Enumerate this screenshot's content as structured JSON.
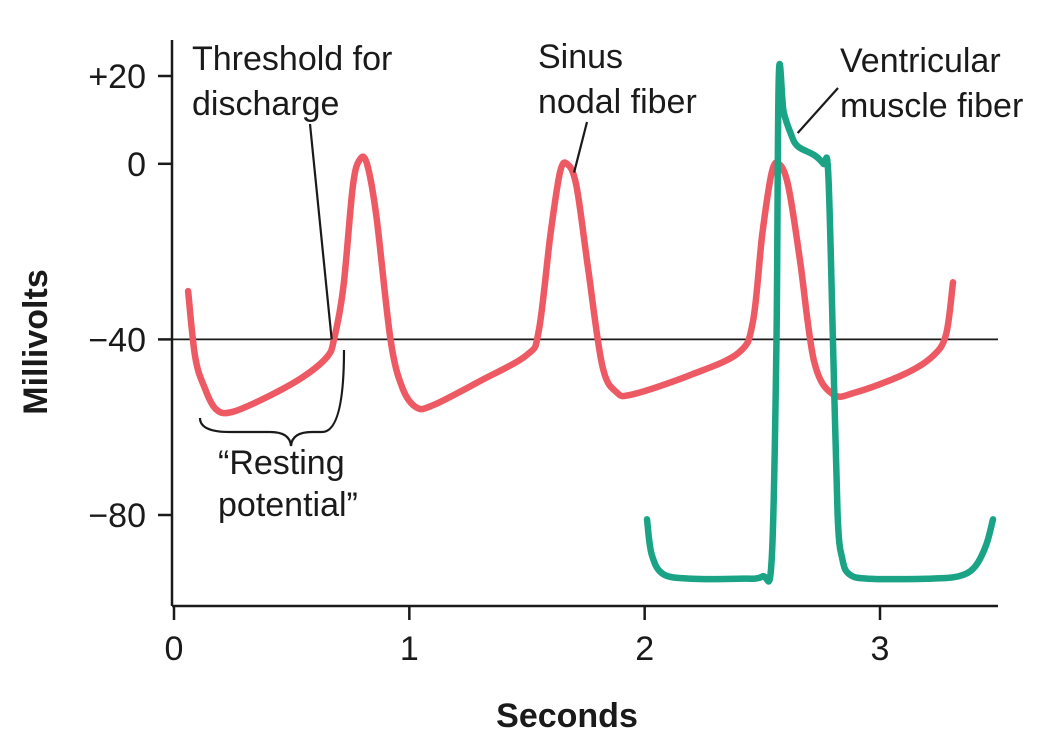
{
  "chart_data": {
    "type": "line",
    "title": "",
    "xlabel": "Seconds",
    "ylabel": "Millivolts",
    "xlim": [
      0,
      3.5
    ],
    "ylim": [
      -100,
      20
    ],
    "x_ticks": [
      0,
      1,
      2,
      3
    ],
    "x_tick_labels": [
      "0",
      "1",
      "2",
      "3"
    ],
    "y_ticks": [
      20,
      0,
      -40,
      -80
    ],
    "y_tick_labels": [
      "+20",
      "0",
      "−40",
      "−80"
    ],
    "reference_line": {
      "y": -40
    },
    "series": [
      {
        "name": "Sinus nodal fiber",
        "color": "#ee5a63",
        "points": [
          [
            0.06,
            -29
          ],
          [
            0.09,
            -44
          ],
          [
            0.13,
            -51
          ],
          [
            0.18,
            -56
          ],
          [
            0.25,
            -56.5
          ],
          [
            0.4,
            -53
          ],
          [
            0.55,
            -48.5
          ],
          [
            0.65,
            -44
          ],
          [
            0.68,
            -40
          ],
          [
            0.72,
            -28
          ],
          [
            0.76,
            -5
          ],
          [
            0.79,
            1
          ],
          [
            0.82,
            0
          ],
          [
            0.86,
            -12
          ],
          [
            0.92,
            -40
          ],
          [
            0.97,
            -51
          ],
          [
            1.03,
            -55.5
          ],
          [
            1.1,
            -55
          ],
          [
            1.3,
            -49.5
          ],
          [
            1.5,
            -43.5
          ],
          [
            1.55,
            -38
          ],
          [
            1.6,
            -16
          ],
          [
            1.64,
            -2
          ],
          [
            1.67,
            0
          ],
          [
            1.71,
            -5
          ],
          [
            1.76,
            -24
          ],
          [
            1.82,
            -46
          ],
          [
            1.88,
            -52
          ],
          [
            1.95,
            -52.5
          ],
          [
            2.2,
            -48
          ],
          [
            2.4,
            -43
          ],
          [
            2.46,
            -36
          ],
          [
            2.5,
            -16
          ],
          [
            2.54,
            -2
          ],
          [
            2.57,
            0
          ],
          [
            2.61,
            -5
          ],
          [
            2.66,
            -22
          ],
          [
            2.72,
            -45
          ],
          [
            2.8,
            -52.5
          ],
          [
            2.9,
            -52
          ],
          [
            3.1,
            -48
          ],
          [
            3.22,
            -44
          ],
          [
            3.28,
            -39
          ],
          [
            3.31,
            -27
          ]
        ]
      },
      {
        "name": "Ventricular muscle fiber",
        "color": "#1aa385",
        "points": [
          [
            2.01,
            -81
          ],
          [
            2.03,
            -89
          ],
          [
            2.08,
            -93.5
          ],
          [
            2.2,
            -94.5
          ],
          [
            2.4,
            -94.5
          ],
          [
            2.5,
            -94
          ],
          [
            2.54,
            -90
          ],
          [
            2.56,
            -40
          ],
          [
            2.57,
            20
          ],
          [
            2.59,
            12
          ],
          [
            2.62,
            7
          ],
          [
            2.65,
            4
          ],
          [
            2.72,
            2
          ],
          [
            2.76,
            0
          ],
          [
            2.78,
            -2
          ],
          [
            2.8,
            -40
          ],
          [
            2.82,
            -80
          ],
          [
            2.84,
            -90
          ],
          [
            2.87,
            -93.5
          ],
          [
            2.95,
            -94.5
          ],
          [
            3.2,
            -94.5
          ],
          [
            3.33,
            -94
          ],
          [
            3.4,
            -92
          ],
          [
            3.45,
            -87
          ],
          [
            3.48,
            -81
          ]
        ]
      }
    ],
    "annotations": [
      {
        "lines": [
          "Threshold for",
          "discharge"
        ],
        "points_to": [
          0.67,
          -40
        ]
      },
      {
        "lines": [
          "Sinus",
          "nodal fiber"
        ],
        "points_to": [
          1.7,
          -2
        ]
      },
      {
        "lines": [
          "Ventricular",
          "muscle fiber"
        ],
        "points_to": [
          2.65,
          7
        ]
      },
      {
        "lines": [
          "“Resting",
          "potential”"
        ],
        "points_to": [
          0.5,
          -57
        ]
      }
    ],
    "grid": false,
    "legend": "none"
  }
}
